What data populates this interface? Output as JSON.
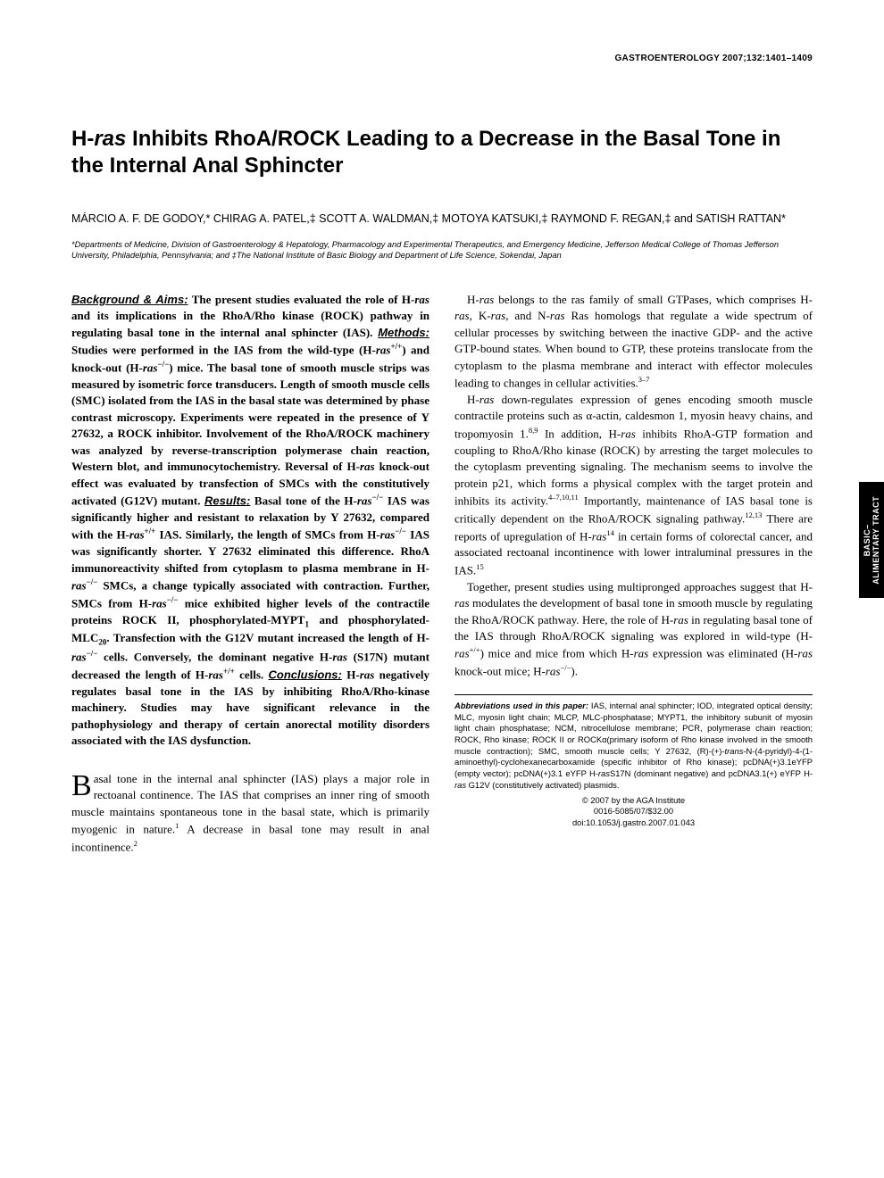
{
  "running_head": "GASTROENTEROLOGY 2007;132:1401–1409",
  "title_pre": "H-",
  "title_ital": "ras",
  "title_post": " Inhibits RhoA/ROCK Leading to a Decrease in the Basal Tone in the Internal Anal Sphincter",
  "authors": "MÁRCIO A. F. DE GODOY,* CHIRAG A. PATEL,‡ SCOTT A. WALDMAN,‡ MOTOYA KATSUKI,‡ RAYMOND F. REGAN,‡ and SATISH RATTAN*",
  "affiliations": "*Departments of Medicine, Division of Gastroenterology & Hepatology, Pharmacology and Experimental Therapeutics, and Emergency Medicine, Jefferson Medical College of Thomas Jefferson University, Philadelphia, Pennsylvania; and ‡The National Institute of Basic Biology and Department of Life Science, Sokendai, Japan",
  "abstract": {
    "bg_heading": "Background & Aims:",
    "bg_text": " The present studies evaluated the role of H-",
    "bg_text2": " and its implications in the RhoA/Rho kinase (ROCK) pathway in regulating basal tone in the internal anal sphincter (IAS). ",
    "methods_heading": "Methods:",
    "methods_text": " Studies were performed in the IAS from the wild-type (H-",
    "methods_text_wt": "+/+",
    "methods_text2": ") and knock-out (H-",
    "methods_text_ko": "−/−",
    "methods_text3": ") mice. The basal tone of smooth muscle strips was measured by isometric force transducers. Length of smooth muscle cells (SMC) isolated from the IAS in the basal state was determined by phase contrast microscopy. Experiments were repeated in the presence of Y 27632, a ROCK inhibitor. Involvement of the RhoA/ROCK machinery was analyzed by reverse-transcription polymerase chain reaction, Western blot, and immunocytochemistry. Reversal of H-",
    "methods_text4": " knock-out effect was evaluated by transfection of SMCs with the constitutively activated (G12V) mutant. ",
    "results_heading": "Results:",
    "results_text": " Basal tone of the H-",
    "results_text2": " IAS was significantly higher and resistant to relaxation by Y 27632, compared with the H-",
    "results_text3": " IAS. Similarly, the length of SMCs from H-",
    "results_text4": " IAS was significantly shorter. Y 27632 eliminated this difference. RhoA immunoreactivity shifted from cytoplasm to plasma membrane in H-",
    "results_text5": " SMCs, a change typically associated with contraction. Further, SMCs from H-",
    "results_text6": " mice exhibited higher levels of the contractile proteins ROCK II, phosphorylated-MYPT",
    "results_sub1": "1",
    "results_text7": " and phosphorylated-MLC",
    "results_sub2": "20",
    "results_text8": ". Transfection with the G12V mutant increased the length of H-",
    "results_text9": " cells. Conversely, the dominant negative H-",
    "results_text10": " (S17N) mutant decreased the length of H-",
    "results_text11": " cells. ",
    "concl_heading": "Conclusions:",
    "concl_text": " H-",
    "concl_text2": " negatively regulates basal tone in the IAS by inhibiting RhoA/Rho-kinase machinery. Studies may have significant relevance in the pathophysiology and therapy of certain anorectal motility disorders associated with the IAS dysfunction."
  },
  "intro": {
    "p1a": "asal tone in the internal anal sphincter (IAS) plays a major role in rectoanal continence. The IAS that comprises an inner ring of smooth muscle maintains spontaneous tone in the basal state, which is primarily myogenic in nature.",
    "ref1": "1",
    "p1b": " A decrease in basal tone may result in anal incontinence.",
    "ref2": "2",
    "p2a": "H-",
    "p2b": " belongs to the ras family of small GTPases, which comprises H-",
    "p2c": ", K-",
    "p2d": ", and N-",
    "p2e": " Ras homologs that regulate a wide spectrum of cellular processes by switching between the inactive GDP- and the active GTP-bound states. When bound to GTP, these proteins translocate from the cytoplasm to the plasma membrane and interact with effector molecules leading to changes in cellular activities.",
    "ref37": "3–7",
    "p3a": "H-",
    "p3b": " down-regulates expression of genes encoding smooth muscle contractile proteins such as α-actin, caldesmon 1, myosin heavy chains, and tropomyosin 1.",
    "ref89": "8,9",
    "p3c": " In addition, H-",
    "p3d": " inhibits RhoA-GTP formation and coupling to RhoA/Rho kinase (ROCK) by arresting the target molecules to the cytoplasm preventing signaling. The mechanism seems to involve the protein p21, which forms a physical complex with the target protein and inhibits its activity.",
    "ref471011": "4–7,10,11",
    "p3e": " Importantly, maintenance of IAS basal tone is critically dependent on the RhoA/ROCK signaling pathway.",
    "ref1213": "12,13",
    "p3f": " There are reports of upregulation of H-",
    "ref14": "14",
    "p3g": " in certain forms of colorectal cancer, and associated rectoanal incontinence with lower intraluminal pressures in the IAS.",
    "ref15": "15",
    "p4a": "Together, present studies using multipronged approaches suggest that H-",
    "p4b": " modulates the development of basal tone in smooth muscle by regulating the RhoA/ROCK pathway. Here, the role of H-",
    "p4c": " in regulating basal tone of the IAS through RhoA/ROCK signaling was explored in wild-type (H-",
    "p4d": ") mice and mice from which H-",
    "p4e": " expression was eliminated (H-",
    "p4f": " knock-out mice; H-",
    "p4g": ")."
  },
  "ras": "ras",
  "wt": "+/+",
  "ko": "−/−",
  "abbrev": {
    "lead": "Abbreviations used in this paper:",
    "body": " IAS, internal anal sphincter; IOD, integrated optical density; MLC, myosin light chain; MLCP, MLC-phosphatase; MYPT1, the inhibitory subunit of myosin light chain phosphatase; NCM, nitrocellulose membrane; PCR, polymerase chain reaction; ROCK, Rho kinase; ROCK II or ROCKα(primary isoform of Rho kinase involved in the smooth muscle contraction); SMC, smooth muscle cells; Y 27632, (R)-(+)-",
    "trans": "trans",
    "body2": "-N-(4-pyridyl)-4-(1-aminoethyl)-cyclohexanecarboxamide (specific inhibitor of Rho kinase); pcDNA(+)3.1eYFP (empty vector); pcDNA(+)3.1 eYFP H-",
    "body3": "S17N (dominant negative) and pcDNA3.1(+) eYFP H-",
    "body4": " G12V (constitutively activated) plasmids."
  },
  "copyright": {
    "line1": "© 2007 by the AGA Institute",
    "line2": "0016-5085/07/$32.00",
    "line3": "doi:10.1053/j.gastro.2007.01.043"
  },
  "side_tab": {
    "line1": "BASIC–",
    "line2": "ALIMENTARY TRACT"
  },
  "colors": {
    "bg": "#ffffff",
    "text": "#000000",
    "tab_bg": "#000000",
    "tab_text": "#ffffff"
  }
}
